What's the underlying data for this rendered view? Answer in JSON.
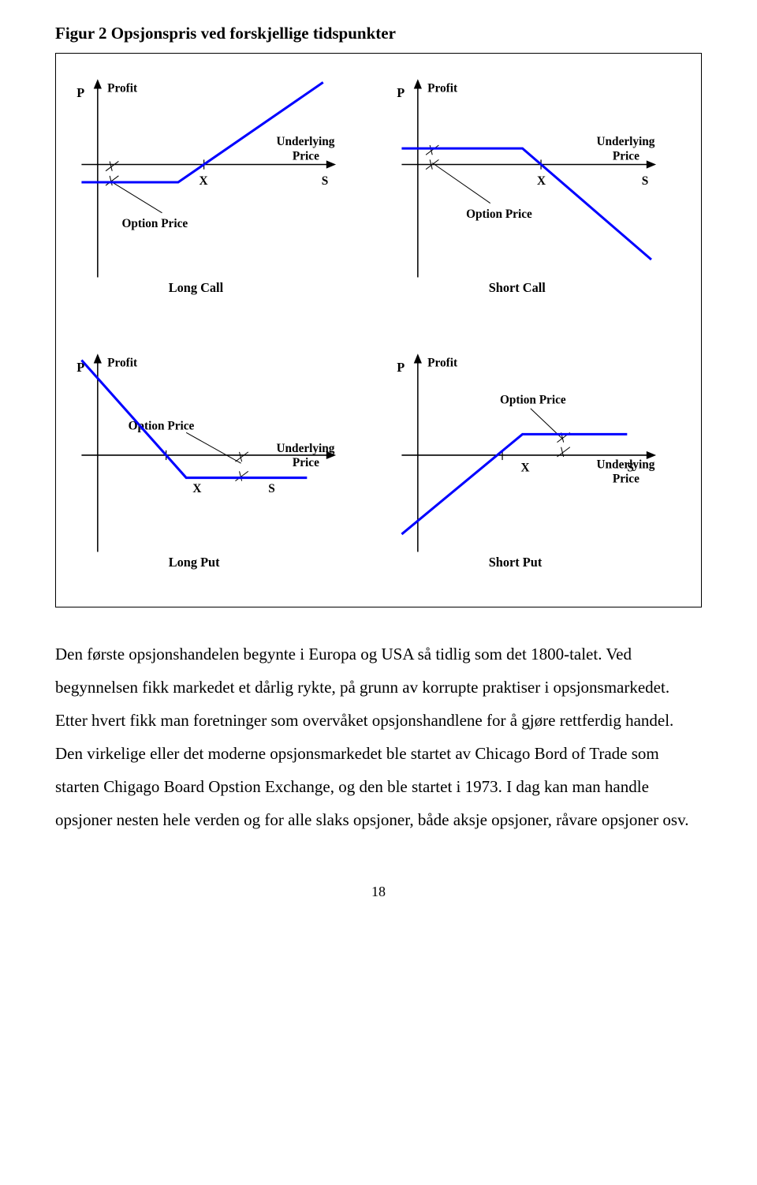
{
  "figure_title": "Figur 2 Opsjonspris ved forskjellige tidspunkter",
  "charts": {
    "global": {
      "line_color": "#0000ff",
      "axis_color": "#000000",
      "line_width": 3,
      "axis_width": 1.5,
      "tick_len": 6,
      "label_font_size": 14,
      "label_font_weight": "bold",
      "name_font_size": 15,
      "name_font_weight": "bold"
    },
    "long_call": {
      "y_axis_label_left": "P",
      "y_axis_label": "Profit",
      "x_axis_label_ul": "Underlying",
      "x_axis_label_price": "Price",
      "x_tick_label": "X",
      "s_label": "S",
      "option_price_label": "Option Price",
      "name": "Long Call",
      "payoff_points": [
        [
          20,
          142
        ],
        [
          140,
          142
        ],
        [
          320,
          18
        ]
      ]
    },
    "short_call": {
      "y_axis_label_left": "P",
      "y_axis_label": "Profit",
      "x_axis_label_ul": "Underlying",
      "x_axis_label_price": "Price",
      "x_tick_label": "X",
      "s_label": "S",
      "option_price_label": "Option Price",
      "name": "Short Call",
      "payoff_points": [
        [
          20,
          100
        ],
        [
          170,
          100
        ],
        [
          330,
          238
        ]
      ]
    },
    "long_put": {
      "y_axis_label_left": "P",
      "y_axis_label": "Profit",
      "x_axis_label_ul": "Underlying",
      "x_axis_label_price": "Price",
      "x_tick_label": "X",
      "s_label": "S",
      "option_price_label": "Option Price",
      "name": "Long Put",
      "payoff_points": [
        [
          20,
          22
        ],
        [
          150,
          168
        ],
        [
          300,
          168
        ]
      ]
    },
    "short_put": {
      "y_axis_label_left": "P",
      "y_axis_label": "Profit",
      "x_axis_label_ul": "Underlying",
      "x_axis_label_price": "Price",
      "x_tick_label": "X",
      "s_label": "S",
      "option_price_label": "Option Price",
      "name": "Short Put",
      "payoff_points": [
        [
          20,
          238
        ],
        [
          170,
          114
        ],
        [
          300,
          114
        ]
      ]
    }
  },
  "body_text": "Den første opsjonshandelen begynte i Europa og USA så tidlig som det 1800-talet. Ved begynnelsen fikk markedet et dårlig rykte, på grunn av korrupte praktiser i opsjonsmarkedet. Etter hvert fikk man foretninger som overvåket opsjonshandlene for å gjøre rettferdig handel. Den virkelige eller det moderne opsjonsmarkedet ble startet av Chicago Bord of Trade som starten Chigago Board Opstion Exchange, og den ble startet i 1973. I dag kan man handle opsjoner nesten hele verden og for alle slaks opsjoner, både aksje opsjoner, råvare opsjoner osv.",
  "page_number": "18"
}
